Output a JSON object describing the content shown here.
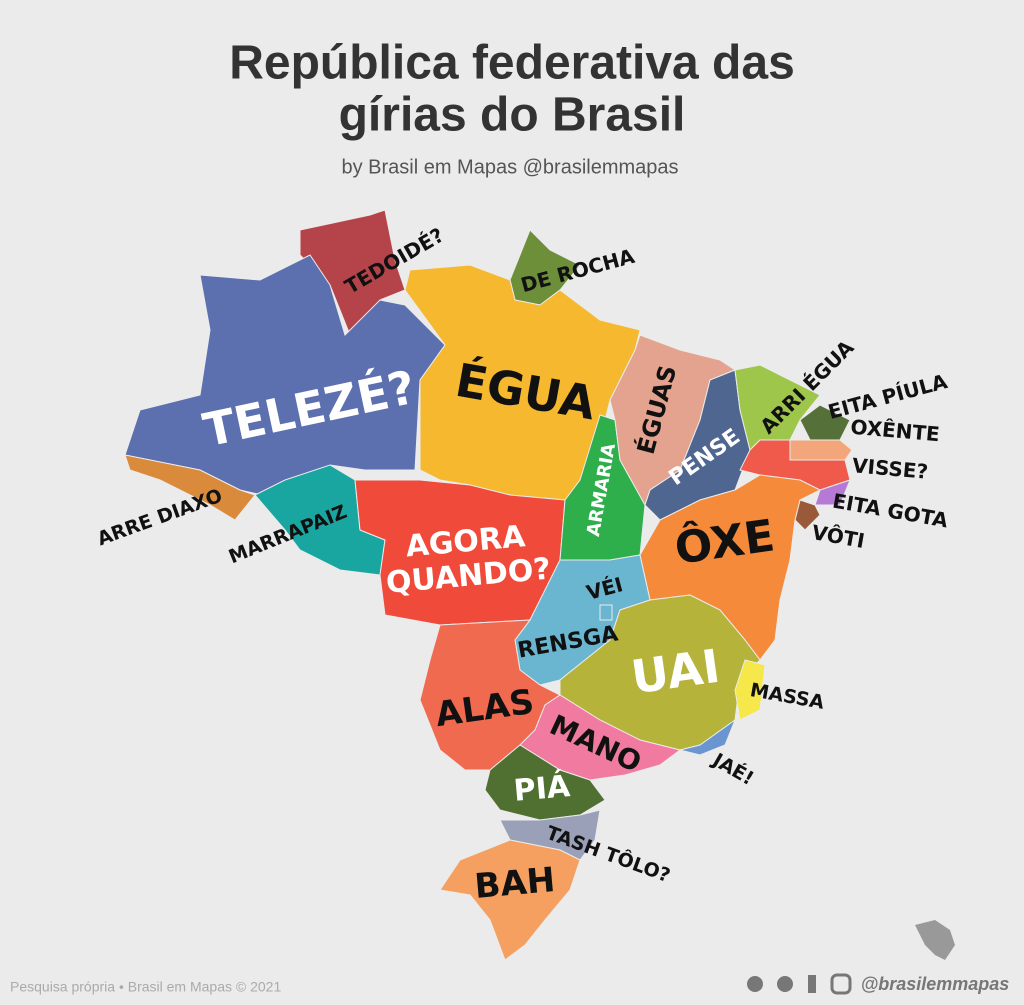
{
  "header": {
    "title_lines": [
      "República federativa das",
      "gírias do Brasil"
    ],
    "subtitle": "by Brasil em Mapas @brasilemmapas"
  },
  "regions": [
    {
      "label": "TEDOIDÉ?"
    },
    {
      "label": "DE ROCHA"
    },
    {
      "label": "TELEZÉ?"
    },
    {
      "label": "ARRE DIAXO"
    },
    {
      "label": "ÉGUA"
    },
    {
      "label": "MARRAPAIZ"
    },
    {
      "label_lines": [
        "AGORA",
        "QUANDO?"
      ]
    },
    {
      "label": "ARMARIA"
    },
    {
      "label": "ÉGUAS"
    },
    {
      "label": "PENSE"
    },
    {
      "label": "ARRI ÉGUA"
    },
    {
      "label": "EITA PÍULA"
    },
    {
      "label": "OXÊNTE"
    },
    {
      "label": "VISSE?"
    },
    {
      "label": "EITA GOTA"
    },
    {
      "label": "VÔTI"
    },
    {
      "label": "ÔXE"
    },
    {
      "label": "RENSGA"
    },
    {
      "label": "VÉI"
    },
    {
      "label": "UAI"
    },
    {
      "label": "MASSA"
    },
    {
      "label": "JAÉ!"
    },
    {
      "label": "ALAS"
    },
    {
      "label": "MANO"
    },
    {
      "label": "PIÁ"
    },
    {
      "label": "TASH TÔLO?"
    },
    {
      "label": "BAH"
    }
  ],
  "footer": {
    "source": "Pesquisa própria • Brasil em Mapas © 2021",
    "handle": "@brasilemmapas"
  }
}
